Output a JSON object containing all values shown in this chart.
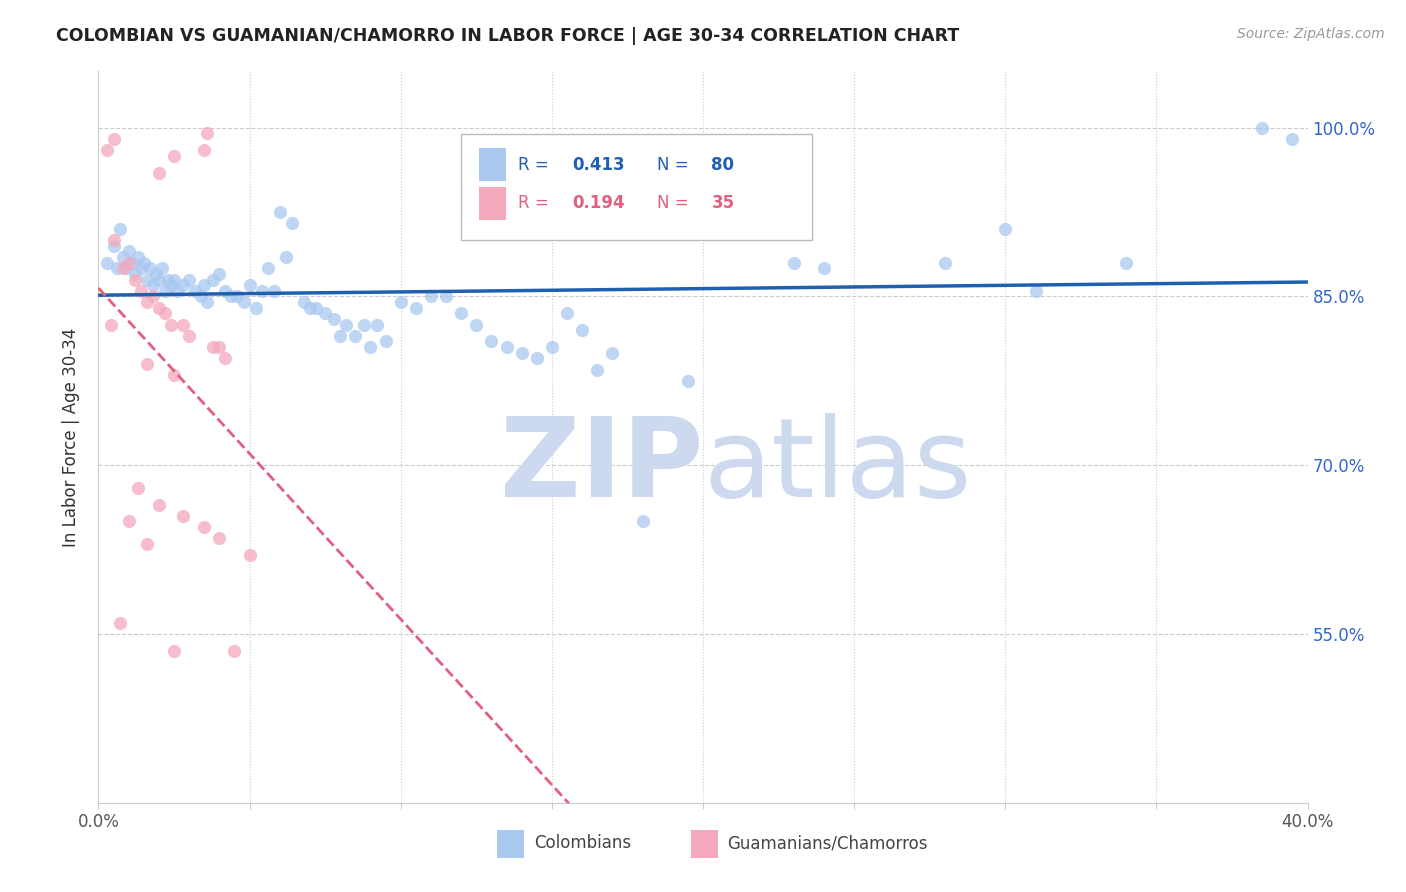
{
  "title": "COLOMBIAN VS GUAMANIAN/CHAMORRO IN LABOR FORCE | AGE 30-34 CORRELATION CHART",
  "source": "Source: ZipAtlas.com",
  "ylabel": "In Labor Force | Age 30-34",
  "xlim": [
    0.0,
    0.4
  ],
  "ylim": [
    0.4,
    1.05
  ],
  "xtick_positions": [
    0.0,
    0.05,
    0.1,
    0.15,
    0.2,
    0.25,
    0.3,
    0.35,
    0.4
  ],
  "xticklabels": [
    "0.0%",
    "",
    "",
    "",
    "",
    "",
    "",
    "",
    "40.0%"
  ],
  "ytick_positions": [
    0.55,
    0.7,
    0.85,
    1.0
  ],
  "ytick_labels": [
    "55.0%",
    "70.0%",
    "85.0%",
    "100.0%"
  ],
  "blue_R": 0.413,
  "blue_N": 80,
  "pink_R": 0.194,
  "pink_N": 35,
  "blue_color": "#a8c8f0",
  "pink_color": "#f4a8bc",
  "blue_line_color": "#2060b0",
  "pink_line_color": "#e06080",
  "blue_scatter": [
    [
      0.003,
      0.88
    ],
    [
      0.005,
      0.895
    ],
    [
      0.006,
      0.875
    ],
    [
      0.007,
      0.91
    ],
    [
      0.008,
      0.885
    ],
    [
      0.009,
      0.875
    ],
    [
      0.01,
      0.89
    ],
    [
      0.011,
      0.88
    ],
    [
      0.012,
      0.87
    ],
    [
      0.013,
      0.885
    ],
    [
      0.014,
      0.875
    ],
    [
      0.015,
      0.88
    ],
    [
      0.016,
      0.865
    ],
    [
      0.017,
      0.875
    ],
    [
      0.018,
      0.86
    ],
    [
      0.019,
      0.87
    ],
    [
      0.02,
      0.865
    ],
    [
      0.021,
      0.875
    ],
    [
      0.022,
      0.855
    ],
    [
      0.023,
      0.865
    ],
    [
      0.024,
      0.86
    ],
    [
      0.025,
      0.865
    ],
    [
      0.026,
      0.855
    ],
    [
      0.028,
      0.86
    ],
    [
      0.03,
      0.865
    ],
    [
      0.032,
      0.855
    ],
    [
      0.034,
      0.85
    ],
    [
      0.035,
      0.86
    ],
    [
      0.036,
      0.845
    ],
    [
      0.038,
      0.865
    ],
    [
      0.04,
      0.87
    ],
    [
      0.042,
      0.855
    ],
    [
      0.044,
      0.85
    ],
    [
      0.046,
      0.85
    ],
    [
      0.048,
      0.845
    ],
    [
      0.05,
      0.86
    ],
    [
      0.052,
      0.84
    ],
    [
      0.054,
      0.855
    ],
    [
      0.056,
      0.875
    ],
    [
      0.058,
      0.855
    ],
    [
      0.06,
      0.925
    ],
    [
      0.062,
      0.885
    ],
    [
      0.064,
      0.915
    ],
    [
      0.068,
      0.845
    ],
    [
      0.07,
      0.84
    ],
    [
      0.072,
      0.84
    ],
    [
      0.075,
      0.835
    ],
    [
      0.078,
      0.83
    ],
    [
      0.08,
      0.815
    ],
    [
      0.082,
      0.825
    ],
    [
      0.085,
      0.815
    ],
    [
      0.088,
      0.825
    ],
    [
      0.09,
      0.805
    ],
    [
      0.092,
      0.825
    ],
    [
      0.095,
      0.81
    ],
    [
      0.1,
      0.845
    ],
    [
      0.105,
      0.84
    ],
    [
      0.11,
      0.85
    ],
    [
      0.115,
      0.85
    ],
    [
      0.12,
      0.835
    ],
    [
      0.125,
      0.825
    ],
    [
      0.13,
      0.81
    ],
    [
      0.135,
      0.805
    ],
    [
      0.14,
      0.8
    ],
    [
      0.145,
      0.795
    ],
    [
      0.15,
      0.805
    ],
    [
      0.155,
      0.835
    ],
    [
      0.16,
      0.82
    ],
    [
      0.165,
      0.785
    ],
    [
      0.17,
      0.8
    ],
    [
      0.18,
      0.65
    ],
    [
      0.195,
      0.775
    ],
    [
      0.23,
      0.88
    ],
    [
      0.24,
      0.875
    ],
    [
      0.28,
      0.88
    ],
    [
      0.3,
      0.91
    ],
    [
      0.31,
      0.855
    ],
    [
      0.34,
      0.88
    ],
    [
      0.385,
      1.0
    ],
    [
      0.395,
      0.99
    ]
  ],
  "pink_scatter": [
    [
      0.003,
      0.98
    ],
    [
      0.005,
      0.99
    ],
    [
      0.02,
      0.96
    ],
    [
      0.025,
      0.975
    ],
    [
      0.035,
      0.98
    ],
    [
      0.036,
      0.995
    ],
    [
      0.005,
      0.9
    ],
    [
      0.008,
      0.875
    ],
    [
      0.01,
      0.88
    ],
    [
      0.012,
      0.865
    ],
    [
      0.014,
      0.855
    ],
    [
      0.016,
      0.845
    ],
    [
      0.018,
      0.85
    ],
    [
      0.02,
      0.84
    ],
    [
      0.022,
      0.835
    ],
    [
      0.004,
      0.825
    ],
    [
      0.024,
      0.825
    ],
    [
      0.028,
      0.825
    ],
    [
      0.03,
      0.815
    ],
    [
      0.038,
      0.805
    ],
    [
      0.04,
      0.805
    ],
    [
      0.042,
      0.795
    ],
    [
      0.016,
      0.79
    ],
    [
      0.025,
      0.78
    ],
    [
      0.007,
      0.56
    ],
    [
      0.01,
      0.65
    ],
    [
      0.016,
      0.63
    ],
    [
      0.025,
      0.535
    ],
    [
      0.045,
      0.535
    ],
    [
      0.013,
      0.68
    ],
    [
      0.02,
      0.665
    ],
    [
      0.028,
      0.655
    ],
    [
      0.035,
      0.645
    ],
    [
      0.04,
      0.635
    ],
    [
      0.05,
      0.62
    ]
  ],
  "watermark_zip": "ZIP",
  "watermark_atlas": "atlas",
  "watermark_color": "#ccd9ee",
  "bg_color": "#ffffff",
  "grid_color": "#cccccc",
  "spine_color": "#cccccc"
}
